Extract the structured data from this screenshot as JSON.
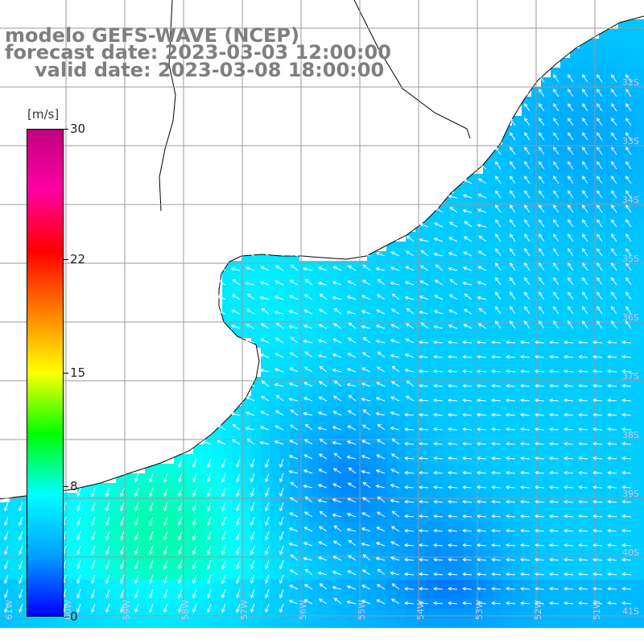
{
  "title": {
    "line1": "modelo GEFS-WAVE (NCEP)",
    "line2": "forecast date: 2023-03-03 12:00:00",
    "line3": "valid date: 2023-03-08 18:00:00"
  },
  "colorbar": {
    "unit": "[m/s]",
    "ticks": [
      "30",
      "22",
      "15",
      "8",
      "0"
    ],
    "tick_values": [
      30,
      22,
      15,
      8,
      0
    ],
    "range": [
      0,
      30
    ],
    "colors": [
      "#0000ff",
      "#00a0ff",
      "#00ffff",
      "#00ff00",
      "#ffff00",
      "#ff8000",
      "#ff0000",
      "#ff00a0",
      "#c00080"
    ]
  },
  "map": {
    "land_color": "#ffffff",
    "coast_color": "#000000",
    "grid_color": "#9a9a9a",
    "lat_labels": [
      "32S",
      "33S",
      "34S",
      "35S",
      "36S",
      "37S",
      "38S",
      "39S",
      "40S",
      "41S"
    ],
    "lon_labels": [
      "61W",
      "60W",
      "59W",
      "58W",
      "57W",
      "56W",
      "55W",
      "54W",
      "53W",
      "52W",
      "51W"
    ],
    "arrow_color": "#ffffff"
  }
}
